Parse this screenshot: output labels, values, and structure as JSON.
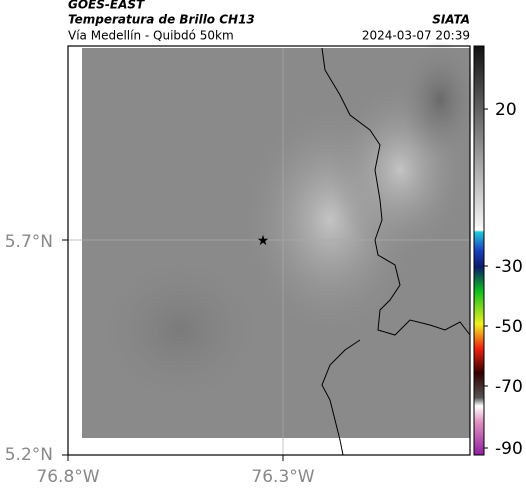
{
  "header": {
    "source": "GOES-EAST",
    "title": "Temperatura de Brillo CH13",
    "org": "SIATA",
    "subtitle": "Vía Medellín - Quibdó 50km",
    "timestamp": "2024-03-07 20:39"
  },
  "map": {
    "lat_labels": [
      "5.7°N",
      "5.2°N"
    ],
    "lon_labels": [
      "76.8°W",
      "76.3°W"
    ]
  },
  "colorbar": {
    "tick_labels": [
      "20",
      "-30",
      "-50",
      "-70",
      "-90"
    ]
  }
}
